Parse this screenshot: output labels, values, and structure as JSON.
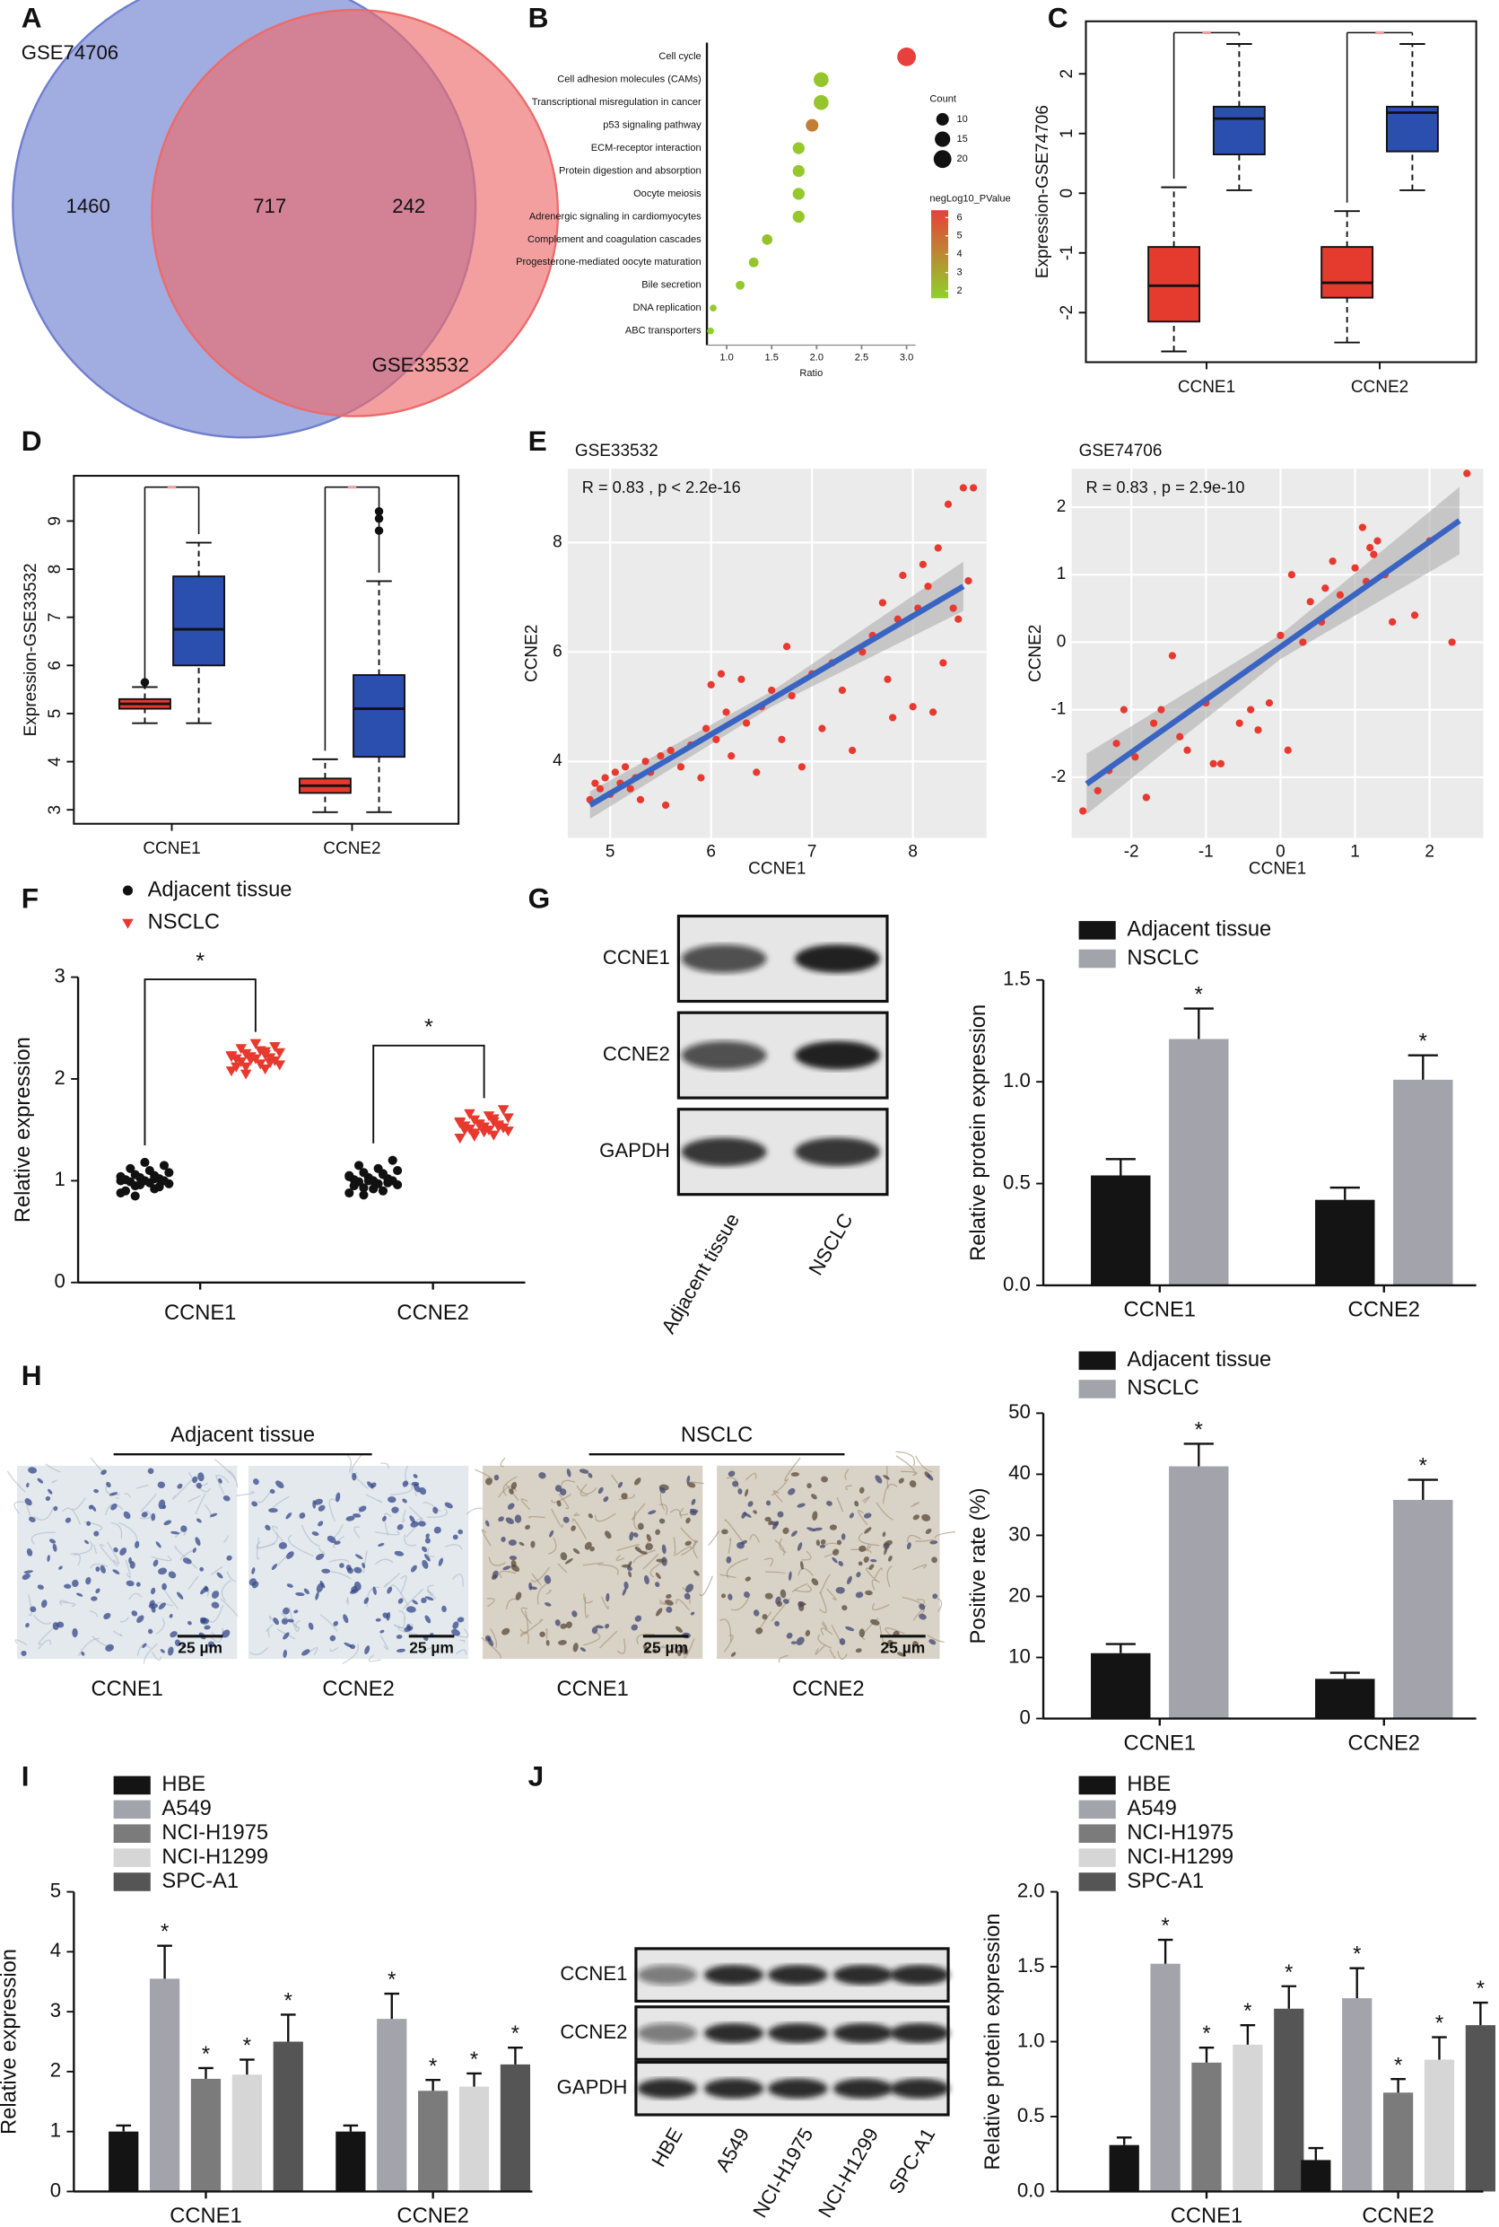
{
  "panels": [
    "A",
    "B",
    "C",
    "D",
    "E",
    "F",
    "G",
    "H",
    "I",
    "J"
  ],
  "chart_data": [
    {
      "type": "venn",
      "series": [
        {
          "name": "GSE74706",
          "color": "#6f7fcf"
        },
        {
          "name": "GSE33532",
          "color": "#ec6b6b"
        }
      ],
      "values": [
        1460,
        717,
        242
      ]
    },
    {
      "type": "dot",
      "xlabel": "Ratio",
      "categories": [
        "Cell cycle",
        "Cell adhesion molecules (CAMs)",
        "Transcriptional misregulation in cancer",
        "p53 signaling pathway",
        "ECM-receptor interaction",
        "Protein digestion and absorption",
        "Oocyte meiosis",
        "Adrenergic signaling in cardiomyocytes",
        "Complement and coagulation cascades",
        "Progesterone-mediated oocyte maturation",
        "Bile secretion",
        "DNA replication",
        "ABC transporters"
      ],
      "values": [
        3.0,
        2.05,
        2.05,
        1.95,
        1.8,
        1.8,
        1.8,
        1.8,
        1.45,
        1.3,
        1.15,
        0.85,
        0.82
      ],
      "count": [
        22,
        14,
        14,
        10,
        9,
        9,
        9,
        9,
        7,
        6,
        5,
        3,
        3
      ],
      "negLog10_PValue": [
        6.6,
        2.0,
        2.0,
        4.3,
        1.9,
        1.9,
        1.9,
        1.9,
        2.1,
        2.0,
        1.9,
        1.8,
        1.7
      ],
      "xlim": [
        0.78,
        3.1
      ],
      "xticks": [
        {
          "value": 1,
          "label": "1.0"
        },
        {
          "value": 1.5,
          "label": "1.5"
        },
        {
          "value": 2,
          "label": "2.0"
        },
        {
          "value": 2.5,
          "label": "2.5"
        },
        {
          "value": 3,
          "label": "3.0"
        }
      ],
      "size_legend_title": "Count",
      "size_ticks": [
        10,
        15,
        20
      ],
      "color_legend_title": "negLog10_PValue",
      "color_lim": [
        1.6,
        6.4
      ],
      "color_ticks": [
        6,
        5,
        4,
        3,
        2
      ],
      "color_range": [
        "#8fd12a",
        "#e8403a"
      ]
    },
    {
      "type": "box",
      "ylabel": "Expression-GSE74706",
      "categories": [
        "CCNE1",
        "CCNE2"
      ],
      "series": [
        {
          "color": "#e53b2f",
          "boxes": [
            [
              -2.65,
              -2.15,
              -1.55,
              -0.9,
              0.1
            ],
            [
              -2.5,
              -1.75,
              -1.5,
              -0.9,
              -0.3
            ]
          ]
        },
        {
          "color": "#2b4fae",
          "boxes": [
            [
              0.05,
              0.65,
              1.25,
              1.45,
              2.5
            ],
            [
              0.05,
              0.7,
              1.35,
              1.45,
              2.5
            ]
          ]
        }
      ],
      "ylim": [
        -2.83,
        2.88
      ],
      "yticks": [
        -2,
        -1,
        0,
        1,
        2
      ]
    },
    {
      "type": "box",
      "ylabel": "Expression-GSE33532",
      "categories": [
        "CCNE1",
        "CCNE2"
      ],
      "series": [
        {
          "color": "#e53b2f",
          "boxes": [
            [
              4.8,
              5.1,
              5.2,
              5.3,
              5.55
            ],
            [
              2.95,
              3.35,
              3.5,
              3.65,
              4.05
            ]
          ],
          "outliers": [
            [
              5.65
            ],
            []
          ]
        },
        {
          "color": "#2b4fae",
          "boxes": [
            [
              4.8,
              6.0,
              6.75,
              7.85,
              8.55
            ],
            [
              2.95,
              4.1,
              5.1,
              5.8,
              7.75
            ]
          ],
          "outliers": [
            [],
            [
              8.8,
              9.05,
              9.2
            ]
          ]
        }
      ],
      "ylim": [
        2.71,
        9.94
      ],
      "yticks": [
        3,
        4,
        5,
        6,
        7,
        8,
        9
      ]
    },
    {
      "type": "scatter",
      "title": "GSE33532",
      "annotation": "R = 0.83 , p < 2.2e-16",
      "xlabel": "CCNE1",
      "ylabel": "CCNE2",
      "color": "#e8392f",
      "x": [
        4.8,
        4.85,
        4.9,
        4.95,
        5.0,
        5.05,
        5.1,
        5.15,
        5.2,
        5.25,
        5.3,
        5.35,
        5.4,
        5.5,
        5.55,
        5.6,
        5.7,
        5.8,
        5.9,
        5.95,
        6.0,
        6.05,
        6.1,
        6.15,
        6.2,
        6.3,
        6.35,
        6.45,
        6.5,
        6.6,
        6.7,
        6.75,
        6.8,
        6.9,
        7.0,
        7.1,
        7.2,
        7.3,
        7.4,
        7.5,
        7.6,
        7.7,
        7.75,
        7.8,
        7.85,
        7.9,
        8.0,
        8.05,
        8.1,
        8.15,
        8.2,
        8.25,
        8.3,
        8.35,
        8.4,
        8.45,
        8.5,
        8.55,
        8.6
      ],
      "y": [
        3.3,
        3.6,
        3.5,
        3.7,
        3.4,
        3.8,
        3.6,
        3.9,
        3.5,
        3.7,
        3.3,
        4.0,
        3.8,
        4.1,
        3.2,
        4.2,
        3.9,
        4.3,
        3.7,
        4.6,
        5.4,
        4.4,
        5.6,
        4.9,
        4.1,
        5.5,
        4.7,
        3.8,
        5.0,
        5.3,
        4.4,
        6.1,
        5.2,
        3.9,
        5.6,
        4.6,
        5.8,
        5.3,
        4.2,
        6.0,
        6.3,
        6.9,
        5.5,
        4.8,
        6.6,
        7.4,
        5.0,
        6.8,
        7.6,
        7.2,
        4.9,
        7.9,
        5.8,
        8.7,
        6.8,
        6.6,
        9.0,
        7.3,
        9.0
      ],
      "fit": {
        "x": [
          4.8,
          6.6,
          8.5
        ],
        "y": [
          3.2,
          5.14,
          7.2
        ],
        "lower": [
          2.95,
          5.0,
          6.75
        ],
        "upper": [
          3.45,
          5.28,
          7.65
        ]
      },
      "xlim": [
        4.58,
        8.73
      ],
      "xticks": [
        5,
        6,
        7,
        8
      ],
      "ylim": [
        2.6,
        9.35
      ],
      "yticks": [
        4,
        6,
        8
      ]
    },
    {
      "type": "scatter",
      "title": "GSE74706",
      "annotation": "R = 0.83 , p = 2.9e-10",
      "xlabel": "CCNE1",
      "ylabel": "CCNE2",
      "color": "#e8392f",
      "x": [
        -2.65,
        -2.45,
        -2.3,
        -2.2,
        -2.1,
        -1.95,
        -1.8,
        -1.7,
        -1.6,
        -1.45,
        -1.35,
        -1.25,
        -1.0,
        -0.9,
        -0.8,
        -0.55,
        -0.4,
        -0.3,
        -0.15,
        0.0,
        0.1,
        0.15,
        0.3,
        0.4,
        0.55,
        0.6,
        0.7,
        0.8,
        1.0,
        1.1,
        1.15,
        1.2,
        1.25,
        1.3,
        1.4,
        1.5,
        1.8,
        2.0,
        2.3,
        2.5
      ],
      "y": [
        -2.5,
        -2.2,
        -1.9,
        -1.5,
        -1.0,
        -1.7,
        -2.3,
        -1.2,
        -1.0,
        -0.2,
        -1.4,
        -1.6,
        -0.9,
        -1.8,
        -1.8,
        -1.2,
        -1.0,
        -1.3,
        -0.9,
        0.1,
        -1.6,
        1.0,
        0.0,
        0.6,
        0.3,
        0.8,
        1.2,
        0.7,
        1.1,
        1.7,
        0.9,
        1.4,
        1.3,
        1.5,
        1.0,
        0.3,
        0.4,
        1.5,
        0.0,
        2.5
      ],
      "fit": {
        "x": [
          -2.6,
          0,
          2.4
        ],
        "y": [
          -2.1,
          -0.07,
          1.8
        ],
        "lower": [
          -2.55,
          -0.25,
          1.3
        ],
        "upper": [
          -1.65,
          0.11,
          2.3
        ]
      },
      "xlim": [
        -2.8,
        2.72
      ],
      "xticks": [
        -2,
        -1,
        0,
        1,
        2
      ],
      "ylim": [
        -2.9,
        2.57
      ],
      "yticks": [
        -2,
        -1,
        0,
        1,
        2
      ]
    },
    {
      "type": "strip",
      "ylabel": "Relative expression",
      "categories": [
        "CCNE1",
        "CCNE2"
      ],
      "significance": [
        "*",
        "*"
      ],
      "series": [
        {
          "name": "Adjacent tissue",
          "color": "#111111",
          "values": [
            [
              0.88,
              0.92,
              0.95,
              0.97,
              0.98,
              0.99,
              1.0,
              1.0,
              1.01,
              1.02,
              1.03,
              1.04,
              1.05,
              1.06,
              1.08,
              1.1,
              1.12,
              1.15,
              1.18,
              0.9,
              0.94,
              0.96,
              1.0,
              1.02,
              0.85
            ],
            [
              0.88,
              0.9,
              0.93,
              0.96,
              0.97,
              0.99,
              1.0,
              1.0,
              1.01,
              1.02,
              1.03,
              1.05,
              1.06,
              1.08,
              1.1,
              1.12,
              1.15,
              1.2,
              0.92,
              0.95,
              0.98,
              1.0,
              1.04,
              1.07,
              0.86
            ]
          ]
        },
        {
          "name": "NSCLC",
          "color": "#e8392f",
          "values": [
            [
              2.08,
              2.1,
              2.12,
              2.14,
              2.15,
              2.17,
              2.18,
              2.2,
              2.2,
              2.21,
              2.22,
              2.23,
              2.24,
              2.25,
              2.26,
              2.28,
              2.3,
              2.32,
              2.35,
              2.12,
              2.16,
              2.19,
              2.22,
              2.27,
              2.05
            ],
            [
              1.42,
              1.45,
              1.47,
              1.49,
              1.5,
              1.51,
              1.52,
              1.53,
              1.54,
              1.55,
              1.56,
              1.57,
              1.58,
              1.6,
              1.62,
              1.64,
              1.66,
              1.7,
              1.48,
              1.5,
              1.53,
              1.55,
              1.58,
              1.61,
              1.44
            ]
          ]
        }
      ],
      "ylim": [
        0,
        3
      ],
      "yticks": [
        0,
        1,
        2,
        3
      ]
    },
    {
      "type": "bar",
      "ylabel": "Relative protein expression",
      "categories": [
        "CCNE1",
        "CCNE2"
      ],
      "series": [
        {
          "name": "Adjacent tissue",
          "color": "#141414",
          "values": [
            0.54,
            0.42
          ],
          "errors": [
            0.08,
            0.06
          ]
        },
        {
          "name": "NSCLC",
          "color": "#a3a3ab",
          "values": [
            1.21,
            1.01
          ],
          "errors": [
            0.15,
            0.12
          ],
          "significance": [
            "*",
            "*"
          ]
        }
      ],
      "ylim": [
        0,
        1.5
      ],
      "yticks": [
        {
          "value": 0,
          "label": "0.0"
        },
        {
          "value": 0.5,
          "label": "0.5"
        },
        {
          "value": 1,
          "label": "1.0"
        },
        {
          "value": 1.5,
          "label": "1.5"
        }
      ]
    },
    {
      "type": "bar",
      "ylabel": "Positive rate (%)",
      "categories": [
        "CCNE1",
        "CCNE2"
      ],
      "series": [
        {
          "name": "Adjacent tissue",
          "color": "#141414",
          "values": [
            10.7,
            6.5
          ],
          "errors": [
            1.5,
            1.0
          ]
        },
        {
          "name": "NSCLC",
          "color": "#a3a3ab",
          "values": [
            41.3,
            35.8
          ],
          "errors": [
            3.7,
            3.3
          ],
          "significance": [
            "*",
            "*"
          ]
        }
      ],
      "ylim": [
        0,
        50
      ],
      "yticks": [
        0,
        10,
        20,
        30,
        40,
        50
      ]
    },
    {
      "type": "bar",
      "ylabel": "Relative expression",
      "categories": [
        "CCNE1",
        "CCNE2"
      ],
      "series": [
        {
          "name": "HBE",
          "color": "#141414",
          "values": [
            1.0,
            1.0
          ],
          "errors": [
            0.1,
            0.1
          ]
        },
        {
          "name": "A549",
          "color": "#a3a3ab",
          "values": [
            3.55,
            2.88
          ],
          "errors": [
            0.55,
            0.42
          ],
          "significance": [
            "*",
            "*"
          ]
        },
        {
          "name": "NCI-H1975",
          "color": "#7b7b7b",
          "values": [
            1.88,
            1.68
          ],
          "errors": [
            0.18,
            0.18
          ],
          "significance": [
            "*",
            "*"
          ]
        },
        {
          "name": "NCI-H1299",
          "color": "#d6d6d6",
          "values": [
            1.95,
            1.75
          ],
          "errors": [
            0.25,
            0.22
          ],
          "significance": [
            "*",
            "*"
          ]
        },
        {
          "name": "SPC-A1",
          "color": "#555555",
          "values": [
            2.5,
            2.12
          ],
          "errors": [
            0.45,
            0.28
          ],
          "significance": [
            "*",
            "*"
          ]
        }
      ],
      "ylim": [
        0,
        5
      ],
      "yticks": [
        0,
        1,
        2,
        3,
        4,
        5
      ]
    },
    {
      "type": "bar",
      "ylabel": "Relative protein expression",
      "categories": [
        "CCNE1",
        "CCNE2"
      ],
      "series": [
        {
          "name": "HBE",
          "color": "#141414",
          "values": [
            0.31,
            0.21
          ],
          "errors": [
            0.05,
            0.08
          ]
        },
        {
          "name": "A549",
          "color": "#a3a3ab",
          "values": [
            1.52,
            1.29
          ],
          "errors": [
            0.16,
            0.2
          ],
          "significance": [
            "*",
            "*"
          ]
        },
        {
          "name": "NCI-H1975",
          "color": "#7b7b7b",
          "values": [
            0.86,
            0.66
          ],
          "errors": [
            0.1,
            0.09
          ],
          "significance": [
            "*",
            "*"
          ]
        },
        {
          "name": "NCI-H1299",
          "color": "#d6d6d6",
          "values": [
            0.98,
            0.88
          ],
          "errors": [
            0.13,
            0.15
          ],
          "significance": [
            "*",
            "*"
          ]
        },
        {
          "name": "SPC-A1",
          "color": "#555555",
          "values": [
            1.22,
            1.11
          ],
          "errors": [
            0.15,
            0.15
          ],
          "significance": [
            "*",
            "*"
          ]
        }
      ],
      "ylim": [
        0,
        2
      ],
      "yticks": [
        {
          "value": 0,
          "label": "0.0"
        },
        {
          "value": 0.5,
          "label": "0.5"
        },
        {
          "value": 1,
          "label": "1.0"
        },
        {
          "value": 1.5,
          "label": "1.5"
        },
        {
          "value": 2,
          "label": "2.0"
        }
      ]
    }
  ],
  "blots": [
    {
      "rows": [
        "CCNE1",
        "CCNE2",
        "GAPDH"
      ],
      "lanes": [
        "Adjacent tissue",
        "NSCLC"
      ]
    },
    {
      "rows": [
        "CCNE1",
        "CCNE2",
        "GAPDH"
      ],
      "lanes": [
        "HBE",
        "A549",
        "NCI-H1975",
        "NCI-H1299",
        "SPC-A1"
      ]
    }
  ],
  "ihc": {
    "groups": [
      "Adjacent tissue",
      "NSCLC"
    ],
    "images": [
      "CCNE1",
      "CCNE2",
      "CCNE1",
      "CCNE2"
    ],
    "scale_bar": "25 µm"
  }
}
